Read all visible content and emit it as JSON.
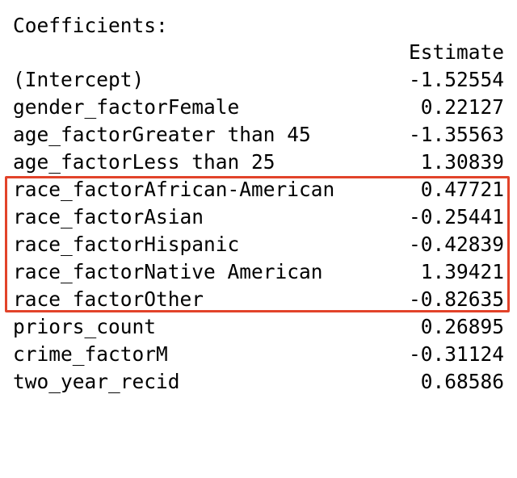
{
  "header": {
    "title": "Coefficients:",
    "column_label": "Estimate"
  },
  "rows": [
    {
      "term": "(Intercept)",
      "estimate": "-1.52554",
      "highlighted": false
    },
    {
      "term": "gender_factorFemale",
      "estimate": "0.22127",
      "highlighted": false
    },
    {
      "term": "age_factorGreater than 45",
      "estimate": "-1.35563",
      "highlighted": false
    },
    {
      "term": "age_factorLess than 25",
      "estimate": "1.30839",
      "highlighted": false
    },
    {
      "term": "race_factorAfrican-American",
      "estimate": "0.47721",
      "highlighted": true
    },
    {
      "term": "race_factorAsian",
      "estimate": "-0.25441",
      "highlighted": true
    },
    {
      "term": "race_factorHispanic",
      "estimate": "-0.42839",
      "highlighted": true
    },
    {
      "term": "race_factorNative American",
      "estimate": "1.39421",
      "highlighted": true
    },
    {
      "term": "race_factorOther",
      "estimate": "-0.82635",
      "highlighted": true
    },
    {
      "term": "priors_count",
      "estimate": "0.26895",
      "highlighted": false
    },
    {
      "term": "crime_factorM",
      "estimate": "-0.31124",
      "highlighted": false
    },
    {
      "term": "two_year_recid",
      "estimate": "0.68586",
      "highlighted": false
    }
  ],
  "highlight_color": "#e2432a"
}
